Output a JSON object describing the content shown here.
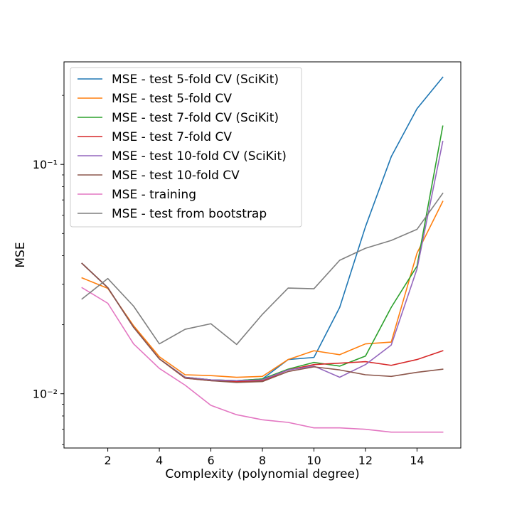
{
  "chart_data": {
    "type": "line",
    "title": "",
    "xlabel": "Complexity (polynomial degree)",
    "ylabel": "MSE",
    "yscale": "log",
    "xlim": [
      0.3,
      15.7
    ],
    "ylim": [
      0.0058,
      0.28
    ],
    "grid": false,
    "legend_position": "top-left",
    "x": [
      1,
      2,
      3,
      4,
      5,
      6,
      7,
      8,
      9,
      10,
      11,
      12,
      13,
      14,
      15
    ],
    "x_ticks": [
      2,
      4,
      6,
      8,
      10,
      12,
      14
    ],
    "x_tick_labels": [
      "2",
      "4",
      "6",
      "8",
      "10",
      "12",
      "14"
    ],
    "y_major_ticks": [
      0.01,
      0.1
    ],
    "y_tick_labels": [
      "10⁻²",
      "10⁻¹"
    ],
    "y_minor_ticks": [
      0.006,
      0.007,
      0.008,
      0.009,
      0.02,
      0.03,
      0.04,
      0.05,
      0.06,
      0.07,
      0.08,
      0.09,
      0.2
    ],
    "series": [
      {
        "name": "MSE - test 5-fold CV (SciKit)",
        "color": "#1f77b4",
        "values": [
          0.037,
          0.029,
          0.0195,
          0.0142,
          0.0118,
          0.0115,
          0.0114,
          0.0116,
          0.0141,
          0.0144,
          0.0238,
          0.0535,
          0.108,
          0.175,
          0.24
        ]
      },
      {
        "name": "MSE - test 5-fold CV",
        "color": "#ff7f0e",
        "values": [
          0.032,
          0.0288,
          0.0198,
          0.0145,
          0.0121,
          0.012,
          0.0118,
          0.0119,
          0.0141,
          0.0154,
          0.0148,
          0.0165,
          0.0168,
          0.041,
          0.069
        ]
      },
      {
        "name": "MSE - test 7-fold CV (SciKit)",
        "color": "#2ca02c",
        "values": [
          0.037,
          0.029,
          0.0195,
          0.0142,
          0.0118,
          0.0115,
          0.0114,
          0.0116,
          0.0128,
          0.0137,
          0.0132,
          0.0146,
          0.0238,
          0.036,
          0.147
        ]
      },
      {
        "name": "MSE - test 7-fold CV",
        "color": "#d62728",
        "values": [
          0.037,
          0.029,
          0.0195,
          0.0142,
          0.0117,
          0.0114,
          0.0113,
          0.0114,
          0.0127,
          0.0134,
          0.0136,
          0.0138,
          0.0133,
          0.0141,
          0.0154
        ]
      },
      {
        "name": "MSE - test 10-fold CV (SciKit)",
        "color": "#9467bd",
        "values": [
          0.037,
          0.029,
          0.0195,
          0.0142,
          0.0118,
          0.0115,
          0.0114,
          0.0115,
          0.0127,
          0.0132,
          0.0118,
          0.0134,
          0.0163,
          0.035,
          0.126
        ]
      },
      {
        "name": "MSE - test 10-fold CV",
        "color": "#8c564b",
        "values": [
          0.037,
          0.029,
          0.0195,
          0.0142,
          0.0117,
          0.0114,
          0.0112,
          0.0113,
          0.0125,
          0.0131,
          0.0127,
          0.0121,
          0.0119,
          0.0124,
          0.0128
        ]
      },
      {
        "name": "MSE - training",
        "color": "#e377c2",
        "values": [
          0.029,
          0.0248,
          0.0165,
          0.0129,
          0.0109,
          0.0089,
          0.0081,
          0.0077,
          0.0075,
          0.0071,
          0.0071,
          0.007,
          0.0068,
          0.0068,
          0.0068
        ]
      },
      {
        "name": "MSE - test from bootstrap",
        "color": "#7f7f7f",
        "values": [
          0.0259,
          0.0318,
          0.0241,
          0.0165,
          0.0191,
          0.0202,
          0.0164,
          0.0222,
          0.0289,
          0.0287,
          0.0382,
          0.0431,
          0.0466,
          0.0521,
          0.0748
        ]
      }
    ]
  }
}
